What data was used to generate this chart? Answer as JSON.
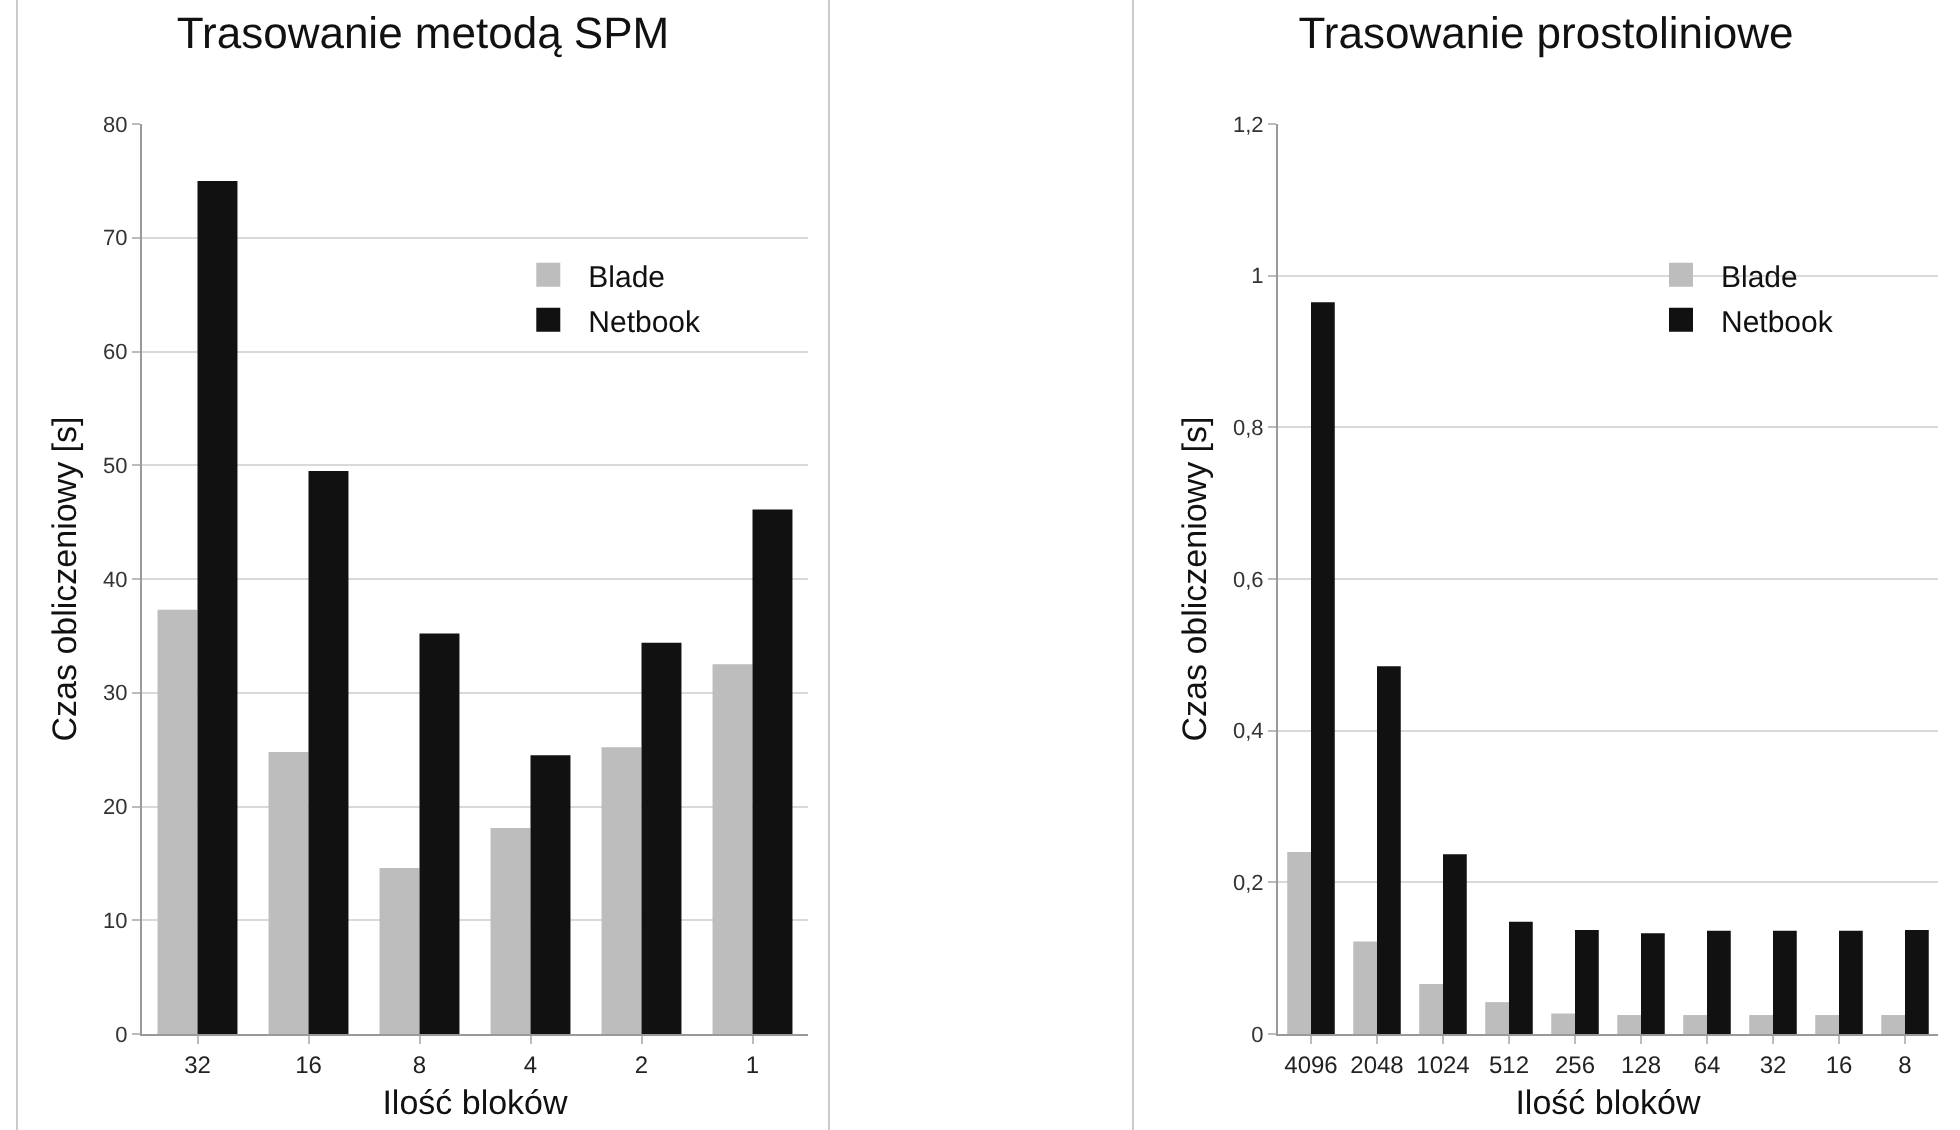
{
  "chart_data": [
    {
      "type": "bar",
      "title": "Trasowanie metodą SPM",
      "xlabel": "Ilość bloków",
      "ylabel": "Czas obliczeniowy [s]",
      "categories": [
        "32",
        "16",
        "8",
        "4",
        "2",
        "1"
      ],
      "series": [
        {
          "name": "Blade",
          "color": "#bdbdbd",
          "values": [
            37.3,
            24.8,
            14.6,
            18.1,
            25.2,
            32.5
          ]
        },
        {
          "name": "Netbook",
          "color": "#111111",
          "values": [
            75.0,
            49.5,
            35.2,
            24.5,
            34.4,
            46.1
          ]
        }
      ],
      "ylim": [
        0,
        80
      ],
      "yticks": [
        0,
        10,
        20,
        30,
        40,
        50,
        60,
        70,
        80
      ],
      "grid": "y",
      "legend": "top right"
    },
    {
      "type": "bar",
      "title": "Trasowanie prostoliniowe",
      "xlabel": "Ilość bloków",
      "ylabel": "Czas obliczeniowy [s]",
      "categories": [
        "4096",
        "2048",
        "1024",
        "512",
        "256",
        "128",
        "64",
        "32",
        "16",
        "8"
      ],
      "series": [
        {
          "name": "Blade",
          "color": "#bdbdbd",
          "values": [
            0.24,
            0.122,
            0.066,
            0.042,
            0.027,
            0.025,
            0.025,
            0.025,
            0.025,
            0.025
          ]
        },
        {
          "name": "Netbook",
          "color": "#111111",
          "values": [
            0.965,
            0.485,
            0.237,
            0.148,
            0.137,
            0.133,
            0.136,
            0.136,
            0.136,
            0.137
          ]
        }
      ],
      "ylim": [
        0,
        1.2
      ],
      "yticks": [
        0,
        {
          "value": 0.2,
          "label": "0,2"
        },
        {
          "value": 0.4,
          "label": "0,4"
        },
        {
          "value": 0.6,
          "label": "0,6"
        },
        {
          "value": 0.8,
          "label": "0,8"
        },
        1,
        {
          "value": 1.2,
          "label": "1,2"
        }
      ],
      "grid": "y",
      "legend": "top right"
    }
  ]
}
